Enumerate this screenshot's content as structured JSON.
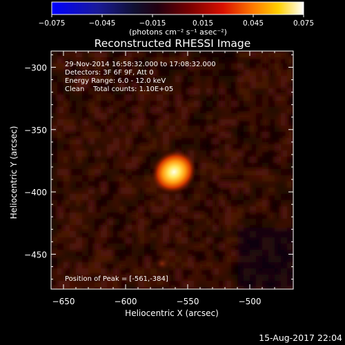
{
  "chart_data": {
    "type": "heatmap",
    "title": "Reconstructed RHESSI Image",
    "xlabel": "Heliocentric X (arcsec)",
    "ylabel": "Heliocentric Y (arcsec)",
    "xlim": [
      -660,
      -465
    ],
    "ylim": [
      -478,
      -287
    ],
    "xticks": [
      -650,
      -600,
      -550,
      -500
    ],
    "xtick_labels": [
      "−650",
      "−600",
      "−550",
      "−500"
    ],
    "yticks": [
      -300,
      -350,
      -400,
      -450
    ],
    "ytick_labels": [
      "−300",
      "−350",
      "−400",
      "−450"
    ],
    "colorbar": {
      "range": [
        -0.075,
        0.075
      ],
      "ticks": [
        -0.075,
        -0.045,
        -0.015,
        0.015,
        0.045,
        0.075
      ],
      "tick_labels": [
        "−0.075",
        "−0.045",
        "−0.015",
        "0.015",
        "0.045",
        "0.075"
      ],
      "unit_label": "(photons cm⁻² s⁻¹ asec⁻²)",
      "colormap": "blue-black-red-yellow-white"
    },
    "annotations": [
      "29-Nov-2014 16:58:32.000 to 17:08:32.000",
      "Detectors: 3F 6F 9F, Att 0",
      "Energy Range: 6.0 - 12.0 keV",
      "Clean    Total counts: 1.10E+05"
    ],
    "peak_label": "Position of Peak = [-561,-384]",
    "peak_position": [
      -561,
      -384
    ],
    "grid": false
  },
  "footer": {
    "timestamp": "15-Aug-2017 22:04"
  },
  "colors": {
    "background": "#000000",
    "peak_core": "#ffffe0",
    "peak_halo": "#ff6a00",
    "noise": "#3a0c02"
  }
}
